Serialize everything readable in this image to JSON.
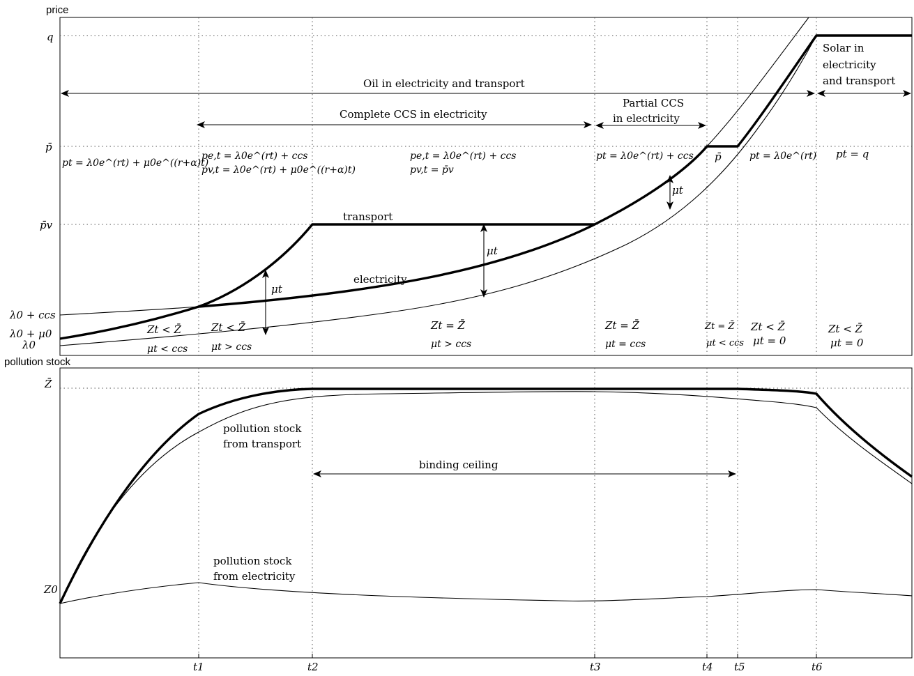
{
  "top_panel": {
    "y_title": "price",
    "y_labels": {
      "q": "q",
      "p_bar": "p̄",
      "p_v_bar": "p̄v",
      "lambda_ccs": "λ0 + ccs",
      "lambda_mu": "λ0 + μ0",
      "lambda": "λ0"
    },
    "curve_labels": {
      "transport": "transport",
      "electricity": "electricity"
    },
    "arrow_labels": {
      "oil": "Oil in electricity and transport",
      "complete_ccs": "Complete CCS in electricity",
      "partial_ccs_1": "Partial CCS",
      "partial_ccs_2": "in electricity",
      "solar_1": "Solar in",
      "solar_2": "electricity",
      "solar_3": "and transport"
    },
    "price_formulas": {
      "f1": "pt = λ0e^(rt) + μ0e^((r+α)t)",
      "f2a": "pe,t = λ0e^(rt) + ccs",
      "f2b": "pv,t = λ0e^(rt) + μ0e^((r+α)t)",
      "f3a": "pe,t = λ0e^(rt) + ccs",
      "f3b": "pv,t = p̄v",
      "f4": "pt = λ0e^(rt) + ccs",
      "f5": "p̄",
      "f6": "pt = λ0e^(rt)",
      "f7": "pt = q"
    },
    "mu_label": "μt",
    "regimes": [
      {
        "z": "Zt < Z̄",
        "mu": "μt < ccs"
      },
      {
        "z": "Zt < Z̄",
        "mu": "μt > ccs"
      },
      {
        "z": "Zt = Z̄",
        "mu": "μt > ccs"
      },
      {
        "z": "Zt = Z̄",
        "mu": "μt = ccs"
      },
      {
        "z": "Zt = Z̄",
        "mu": "μt < ccs"
      },
      {
        "z": "Zt < Z̄",
        "mu": "μt = 0"
      },
      {
        "z": "Zt < Z̄",
        "mu": "μt = 0"
      }
    ]
  },
  "bottom_panel": {
    "y_title": "pollution stock",
    "y_labels": {
      "z_bar": "Z̄",
      "z0": "Z0"
    },
    "labels": {
      "transport_1": "pollution stock",
      "transport_2": "from transport",
      "electricity_1": "pollution stock",
      "electricity_2": "from electricity",
      "binding": "binding ceiling"
    }
  },
  "x_ticks": [
    "t1",
    "t2",
    "t3",
    "t4",
    "t5",
    "t6"
  ]
}
